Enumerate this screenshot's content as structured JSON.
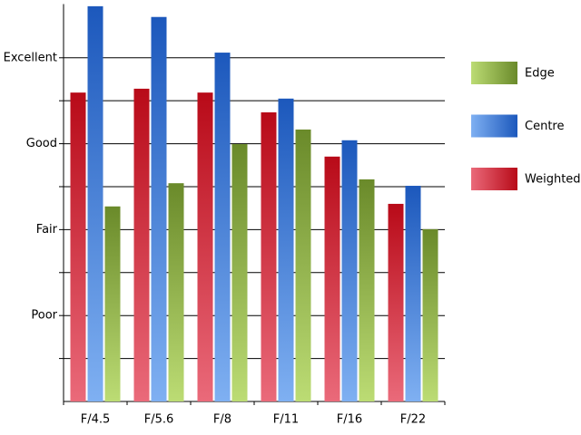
{
  "chart_data": {
    "type": "bar",
    "categories": [
      "F/4.5",
      "F/5.6",
      "F/8",
      "F/11",
      "F/16",
      "F/22"
    ],
    "series": [
      {
        "name": "Weighted",
        "color": "#c8101e",
        "gradient": [
          "#b80a18",
          "#ea6a7a"
        ],
        "values": [
          7.19,
          7.28,
          7.19,
          6.73,
          5.7,
          4.6
        ]
      },
      {
        "name": "Centre",
        "color": "#2a6ad0",
        "gradient": [
          "#1c58bc",
          "#7fb0f2"
        ],
        "values": [
          9.2,
          8.95,
          8.12,
          7.05,
          6.08,
          5.02
        ]
      },
      {
        "name": "Edge",
        "color": "#86a83a",
        "gradient": [
          "#6a8a2a",
          "#bcdc74"
        ],
        "values": [
          4.54,
          5.08,
          5.99,
          6.33,
          5.17,
          4.01
        ]
      }
    ],
    "legend_order": [
      2,
      1,
      0
    ],
    "ylim": [
      0,
      9.25
    ],
    "yticks": [
      {
        "value": 2,
        "label": "Poor"
      },
      {
        "value": 4,
        "label": "Fair"
      },
      {
        "value": 6,
        "label": "Good"
      },
      {
        "value": 8,
        "label": "Excellent"
      }
    ],
    "minor_yticks": [
      1,
      3,
      5,
      7
    ],
    "grid": true,
    "legend": "right"
  }
}
